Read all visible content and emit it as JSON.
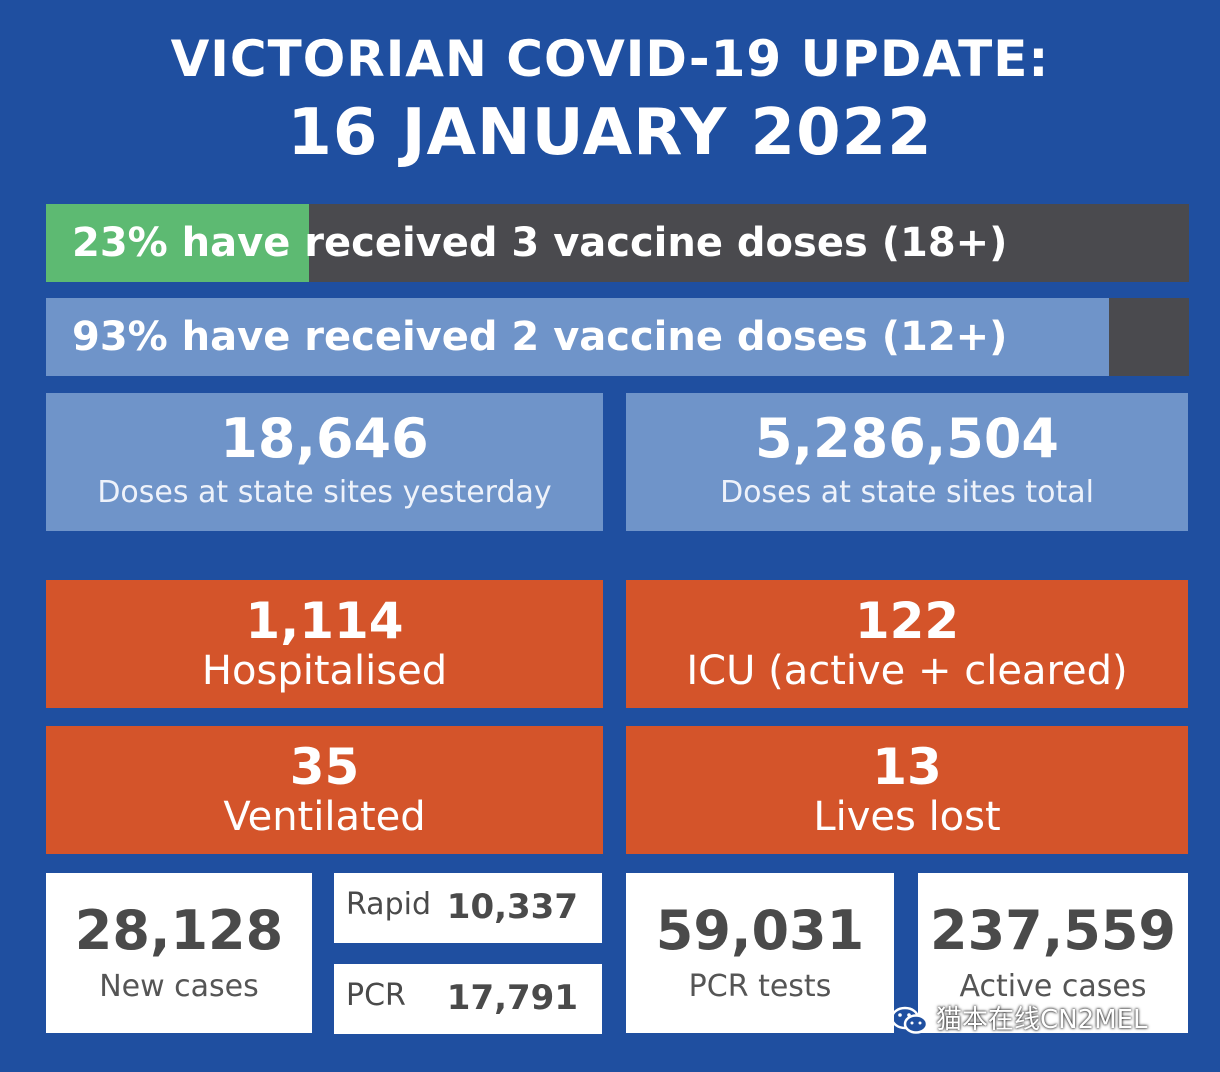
{
  "header": {
    "title": "VICTORIAN COVID-19 UPDATE:",
    "date": "16 JANUARY 2022"
  },
  "vaccine_bars": [
    {
      "text": "23% have received 3 vaccine doses (18+)",
      "percent": 23,
      "fill_color": "#5dba72"
    },
    {
      "text": "93% have received 2 vaccine doses (12+)",
      "percent": 93,
      "fill_color": "#6f94c9"
    }
  ],
  "doses": {
    "yesterday": {
      "value": "18,646",
      "label": "Doses at state sites yesterday"
    },
    "total": {
      "value": "5,286,504",
      "label": "Doses at state sites total"
    }
  },
  "hospital": {
    "hospitalised": {
      "value": "1,114",
      "label": "Hospitalised"
    },
    "icu": {
      "value": "122",
      "label": "ICU (active + cleared)"
    },
    "ventilated": {
      "value": "35",
      "label": "Ventilated"
    },
    "lives_lost": {
      "value": "13",
      "label": "Lives lost"
    }
  },
  "cases": {
    "new_cases": {
      "value": "28,128",
      "label": "New cases"
    },
    "rapid": {
      "label": "Rapid",
      "value": "10,337"
    },
    "pcr": {
      "label": "PCR",
      "value": "17,791"
    },
    "pcr_tests": {
      "value": "59,031",
      "label": "PCR tests"
    },
    "active_cases": {
      "value": "237,559",
      "label": "Active cases"
    }
  },
  "watermark": {
    "text": "猫本在线CN2MEL",
    "icon": "wechat-icon"
  },
  "colors": {
    "background": "#1f4fa0",
    "green": "#5dba72",
    "light_blue": "#6f94c9",
    "orange": "#d4542a",
    "dark_bar": "#4a4a4e"
  }
}
